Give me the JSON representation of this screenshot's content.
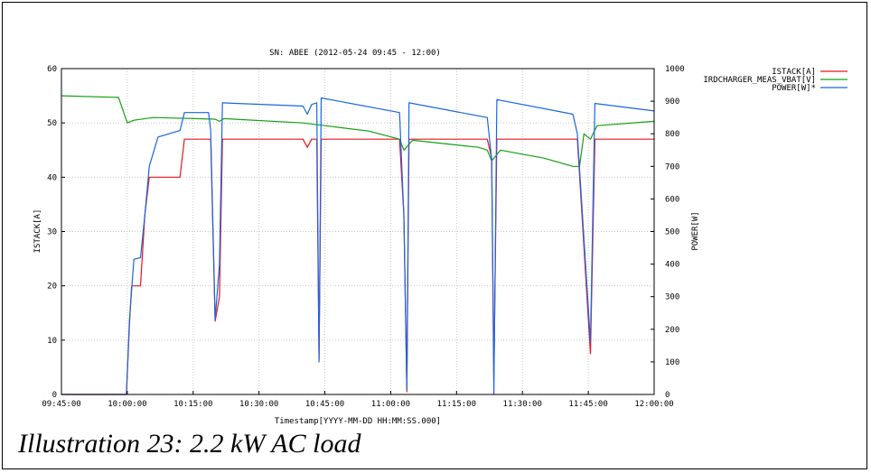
{
  "caption": "Illustration 23: 2.2 kW AC load",
  "chart_data": {
    "type": "line",
    "title": "SN: ABEE  (2012-05-24 09:45 - 12:00)",
    "xlabel": "Timestamp[YYYY-MM-DD HH:MM:SS.000]",
    "ylabel_left": "ISTACK[A]",
    "ylabel_right": "POWER[W]",
    "x_ticks": [
      "09:45:00",
      "10:00:00",
      "10:15:00",
      "10:30:00",
      "10:45:00",
      "11:00:00",
      "11:15:00",
      "11:30:00",
      "11:45:00",
      "12:00:00"
    ],
    "xlim": [
      "09:45:00",
      "12:00:00"
    ],
    "ylim_left": [
      0,
      60
    ],
    "ylim_right": [
      0,
      1000
    ],
    "y_ticks_left": [
      "0",
      "10",
      "20",
      "30",
      "40",
      "50",
      "60"
    ],
    "y_ticks_right": [
      "0",
      "100",
      "200",
      "300",
      "400",
      "500",
      "600",
      "700",
      "800",
      "900",
      "1000"
    ],
    "grid": true,
    "legend_position": "top-right",
    "series": [
      {
        "name": "ISTACK[A]",
        "axis": "left",
        "color": "#e8141a",
        "points": [
          [
            "09:45:00",
            0
          ],
          [
            "09:59:48",
            0
          ],
          [
            "10:00:30",
            13
          ],
          [
            "10:01:00",
            20
          ],
          [
            "10:03:00",
            20
          ],
          [
            "10:04:00",
            33
          ],
          [
            "10:05:00",
            40
          ],
          [
            "10:12:00",
            40
          ],
          [
            "10:13:00",
            47
          ],
          [
            "10:19:00",
            47
          ],
          [
            "10:20:00",
            13.5
          ],
          [
            "10:21:00",
            18
          ],
          [
            "10:21:40",
            47
          ],
          [
            "10:40:00",
            47
          ],
          [
            "10:41:00",
            45.5
          ],
          [
            "10:42:00",
            47
          ],
          [
            "10:43:10",
            47
          ],
          [
            "10:43:40",
            6.5
          ],
          [
            "10:44:10",
            47
          ],
          [
            "11:02:00",
            47
          ],
          [
            "11:03:00",
            33
          ],
          [
            "11:03:40",
            0.5
          ],
          [
            "11:04:10",
            47
          ],
          [
            "11:22:00",
            47
          ],
          [
            "11:23:00",
            43.5
          ],
          [
            "11:23:30",
            3
          ],
          [
            "11:24:10",
            47
          ],
          [
            "11:41:30",
            47
          ],
          [
            "11:42:30",
            47
          ],
          [
            "11:45:30",
            7.5
          ],
          [
            "11:46:30",
            47
          ],
          [
            "12:00:00",
            47
          ]
        ]
      },
      {
        "name": "IRDCHARGER_MEAS_VBAT[V]",
        "axis": "left",
        "color": "#12a012",
        "points": [
          [
            "09:45:00",
            55
          ],
          [
            "09:58:00",
            54.7
          ],
          [
            "10:00:00",
            50
          ],
          [
            "10:01:30",
            50.5
          ],
          [
            "10:06:00",
            51
          ],
          [
            "10:20:00",
            50.7
          ],
          [
            "10:21:00",
            50.3
          ],
          [
            "10:22:00",
            50.8
          ],
          [
            "10:40:00",
            50
          ],
          [
            "10:45:00",
            49.5
          ],
          [
            "10:55:00",
            48.5
          ],
          [
            "11:02:00",
            47
          ],
          [
            "11:03:00",
            45
          ],
          [
            "11:05:00",
            46.8
          ],
          [
            "11:20:00",
            45.5
          ],
          [
            "11:22:00",
            45
          ],
          [
            "11:23:00",
            43
          ],
          [
            "11:25:00",
            45
          ],
          [
            "11:35:00",
            43.5
          ],
          [
            "11:41:30",
            42
          ],
          [
            "11:43:00",
            42
          ],
          [
            "11:44:00",
            48
          ],
          [
            "11:45:30",
            47
          ],
          [
            "11:47:00",
            49.5
          ],
          [
            "12:00:00",
            50.3
          ]
        ]
      },
      {
        "name": "POWER[W]*",
        "axis": "right",
        "color": "#1a66e0",
        "points": [
          [
            "09:45:00",
            0
          ],
          [
            "09:59:48",
            0
          ],
          [
            "10:00:30",
            230
          ],
          [
            "10:01:30",
            415
          ],
          [
            "10:03:00",
            420
          ],
          [
            "10:04:00",
            550
          ],
          [
            "10:05:00",
            700
          ],
          [
            "10:07:00",
            790
          ],
          [
            "10:12:00",
            810
          ],
          [
            "10:13:00",
            865
          ],
          [
            "10:18:30",
            865
          ],
          [
            "10:19:00",
            810
          ],
          [
            "10:20:00",
            230
          ],
          [
            "10:21:00",
            400
          ],
          [
            "10:21:40",
            895
          ],
          [
            "10:40:00",
            885
          ],
          [
            "10:41:00",
            860
          ],
          [
            "10:42:00",
            890
          ],
          [
            "10:43:10",
            895
          ],
          [
            "10:43:40",
            100
          ],
          [
            "10:44:10",
            910
          ],
          [
            "11:02:00",
            865
          ],
          [
            "11:03:00",
            550
          ],
          [
            "11:03:40",
            15
          ],
          [
            "11:04:10",
            895
          ],
          [
            "11:22:00",
            850
          ],
          [
            "11:23:00",
            720
          ],
          [
            "11:23:30",
            0
          ],
          [
            "11:24:10",
            905
          ],
          [
            "11:41:30",
            860
          ],
          [
            "11:42:30",
            800
          ],
          [
            "11:45:30",
            160
          ],
          [
            "11:46:30",
            893
          ],
          [
            "12:00:00",
            870
          ]
        ]
      }
    ]
  }
}
